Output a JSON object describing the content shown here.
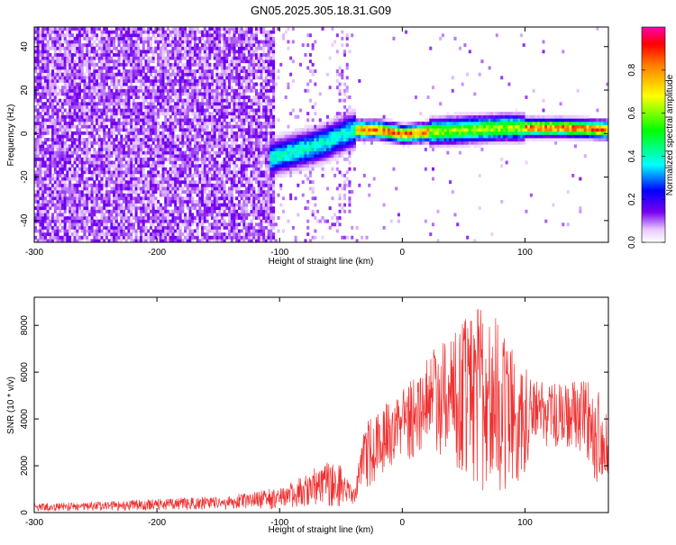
{
  "figure_title": "GN05.2025.305.18.31.G09",
  "chart_data": [
    {
      "type": "heatmap",
      "xlabel": "Height of straight line (km)",
      "ylabel": "Frequency (Hz)",
      "xlim": [
        -300,
        168
      ],
      "ylim": [
        -50,
        49
      ],
      "x_ticks": [
        -300,
        -200,
        -100,
        0,
        100
      ],
      "y_ticks": [
        -40,
        -20,
        0,
        20,
        40
      ],
      "ridge": [
        {
          "x": -108,
          "y": -12
        },
        {
          "x": -90,
          "y": -9
        },
        {
          "x": -75,
          "y": -7
        },
        {
          "x": -60,
          "y": -4
        },
        {
          "x": -45,
          "y": 0
        },
        {
          "x": -38,
          "y": 1
        },
        {
          "x": -20,
          "y": 1
        },
        {
          "x": 0,
          "y": -1
        },
        {
          "x": 20,
          "y": 0
        },
        {
          "x": 50,
          "y": 1
        },
        {
          "x": 80,
          "y": 2
        },
        {
          "x": 100,
          "y": 2
        },
        {
          "x": 130,
          "y": 2
        },
        {
          "x": 168,
          "y": 1
        }
      ],
      "colorbar": {
        "label": "Normalized spectral amplitude",
        "range": [
          0,
          1
        ],
        "ticks": [
          0.0,
          0.2,
          0.4,
          0.6,
          0.8
        ]
      }
    },
    {
      "type": "line",
      "xlabel": "Height of straight line (km)",
      "ylabel": "SNR (10 * v/v)",
      "xlim": [
        -300,
        168
      ],
      "ylim": [
        0,
        9200
      ],
      "x_ticks": [
        -300,
        -200,
        -100,
        0,
        100
      ],
      "y_ticks": [
        0,
        2000,
        4000,
        6000,
        8000
      ],
      "color": "#f03030",
      "envelope": [
        {
          "x": -300,
          "low": 50,
          "high": 400
        },
        {
          "x": -250,
          "low": 80,
          "high": 450
        },
        {
          "x": -200,
          "low": 100,
          "high": 600
        },
        {
          "x": -150,
          "low": 100,
          "high": 700
        },
        {
          "x": -120,
          "low": 120,
          "high": 900
        },
        {
          "x": -100,
          "low": 150,
          "high": 1100
        },
        {
          "x": -80,
          "low": 200,
          "high": 1600
        },
        {
          "x": -60,
          "low": 250,
          "high": 2300
        },
        {
          "x": -50,
          "low": 250,
          "high": 2000
        },
        {
          "x": -40,
          "low": 150,
          "high": 1000
        },
        {
          "x": -30,
          "low": 1000,
          "high": 4000
        },
        {
          "x": -10,
          "low": 1700,
          "high": 4800
        },
        {
          "x": 10,
          "low": 2300,
          "high": 6000
        },
        {
          "x": 30,
          "low": 2500,
          "high": 7400
        },
        {
          "x": 50,
          "low": 1600,
          "high": 8200
        },
        {
          "x": 70,
          "low": 600,
          "high": 9100
        },
        {
          "x": 90,
          "low": 1000,
          "high": 7000
        },
        {
          "x": 110,
          "low": 2400,
          "high": 5600
        },
        {
          "x": 130,
          "low": 2800,
          "high": 5500
        },
        {
          "x": 150,
          "low": 2400,
          "high": 5700
        },
        {
          "x": 160,
          "low": 700,
          "high": 5200
        },
        {
          "x": 168,
          "low": 1500,
          "high": 4400
        }
      ]
    }
  ]
}
